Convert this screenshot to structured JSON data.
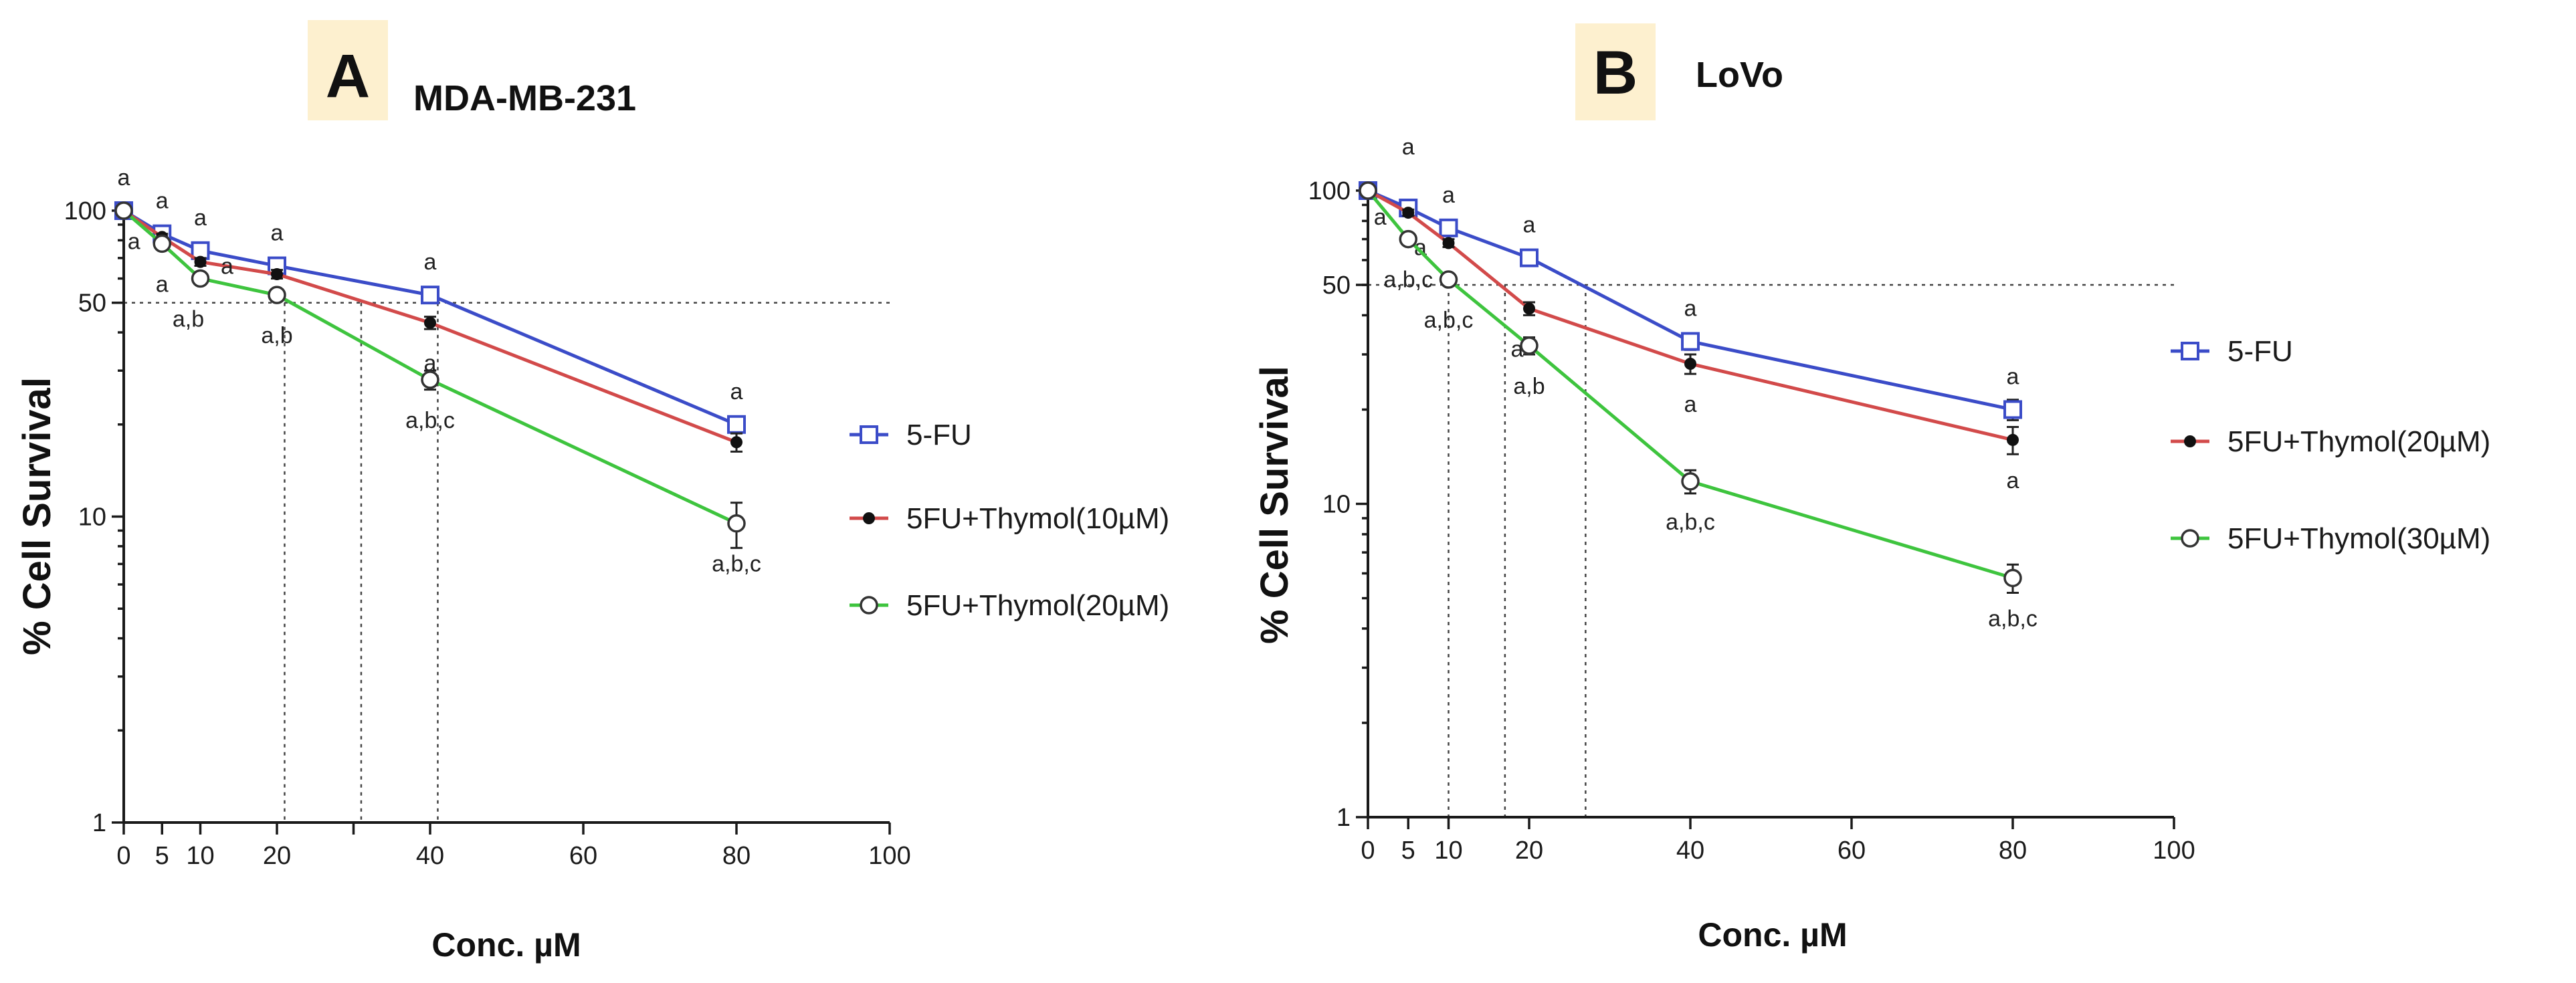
{
  "chart_data": [
    {
      "type": "line",
      "panel_letter": "A",
      "title": "MDA-MB-231",
      "xlabel": "Conc.  µM",
      "ylabel": "% Cell Survival",
      "yscale": "log",
      "xlim": [
        0,
        100
      ],
      "ylim": [
        1,
        100
      ],
      "xticks": [
        0,
        5,
        10,
        20,
        30,
        40,
        60,
        80,
        100
      ],
      "xtick_labels": [
        "0",
        "5",
        "10",
        "20",
        "",
        "40",
        "60",
        "80",
        "100"
      ],
      "yticks": [
        1,
        10,
        50,
        100
      ],
      "ytick_labels": [
        "1",
        "10",
        "50",
        "100"
      ],
      "x": [
        0,
        5,
        10,
        20,
        40,
        80
      ],
      "series": [
        {
          "name": "5-FU",
          "color": "#3b4cc8",
          "marker": "square",
          "values": [
            100,
            84,
            74,
            66,
            53,
            20
          ],
          "errors": [
            2,
            2,
            2,
            2,
            2,
            1
          ],
          "annotations": [
            {
              "text": "a",
              "pos": "above"
            },
            {
              "text": "a",
              "pos": "above"
            },
            {
              "text": "a",
              "pos": "above"
            },
            {
              "text": "a",
              "pos": "above"
            },
            {
              "text": "a",
              "pos": "above"
            },
            {
              "text": "a",
              "pos": "above"
            }
          ]
        },
        {
          "name": "5FU+Thymol(10µM)",
          "color": "#d24a4a",
          "marker": "dot",
          "values": [
            100,
            82,
            68,
            62,
            43,
            17.5
          ],
          "errors": [
            2,
            2,
            2,
            2,
            2,
            1.2
          ],
          "annotations": [
            {
              "text": "",
              "pos": ""
            },
            {
              "text": "a",
              "pos": "left"
            },
            {
              "text": "a",
              "pos": "right"
            },
            {
              "text": "",
              "pos": ""
            },
            {
              "text": "a",
              "pos": "below"
            },
            {
              "text": "",
              "pos": ""
            }
          ]
        },
        {
          "name": "5FU+Thymol(20µM)",
          "color": "#3ec43e",
          "marker": "circle",
          "values": [
            100,
            78,
            60,
            53,
            28,
            9.5
          ],
          "errors": [
            2,
            2,
            2,
            2,
            2,
            1.6
          ],
          "annotations": [
            {
              "text": "",
              "pos": ""
            },
            {
              "text": "a",
              "pos": "below"
            },
            {
              "text": "a,b",
              "pos": "belowleft"
            },
            {
              "text": "a,b",
              "pos": "below"
            },
            {
              "text": "a,b,c",
              "pos": "below"
            },
            {
              "text": "a,b,c",
              "pos": "below"
            }
          ]
        }
      ],
      "reference_lines": {
        "y50": 50,
        "ic50_x": [
          21,
          31,
          41
        ]
      },
      "legend": "right"
    },
    {
      "type": "line",
      "panel_letter": "B",
      "title": "LoVo",
      "xlabel": "Conc.  µM",
      "ylabel": "% Cell Survival",
      "yscale": "log",
      "xlim": [
        0,
        100
      ],
      "ylim": [
        1,
        100
      ],
      "xticks": [
        0,
        5,
        10,
        20,
        40,
        60,
        80,
        100
      ],
      "xtick_labels": [
        "0",
        "5",
        "10",
        "20",
        "40",
        "60",
        "80",
        "100"
      ],
      "yticks": [
        1,
        10,
        50,
        100
      ],
      "ytick_labels": [
        "1",
        "10",
        "50",
        "100"
      ],
      "x": [
        0,
        5,
        10,
        20,
        40,
        80
      ],
      "series": [
        {
          "name": "5-FU",
          "color": "#3b4cc8",
          "marker": "square",
          "values": [
            100,
            88,
            76,
            61,
            33,
            20
          ],
          "errors": [
            2,
            2,
            2,
            2,
            2,
            1.5
          ],
          "annotations": [
            {
              "text": "",
              "pos": ""
            },
            {
              "text": "a",
              "pos": "above2"
            },
            {
              "text": "a",
              "pos": "above"
            },
            {
              "text": "a",
              "pos": "above"
            },
            {
              "text": "a",
              "pos": "above"
            },
            {
              "text": "a",
              "pos": "above"
            }
          ]
        },
        {
          "name": "5FU+Thymol(20µM)",
          "color": "#d24a4a",
          "marker": "dot",
          "values": [
            100,
            85,
            68,
            42,
            28,
            16
          ],
          "errors": [
            2,
            2,
            2,
            2,
            2,
            1.6
          ],
          "annotations": [
            {
              "text": "",
              "pos": ""
            },
            {
              "text": "a",
              "pos": "left"
            },
            {
              "text": "a",
              "pos": "left"
            },
            {
              "text": "a",
              "pos": "belowleft"
            },
            {
              "text": "a",
              "pos": "below"
            },
            {
              "text": "a",
              "pos": "below"
            }
          ]
        },
        {
          "name": "5FU+Thymol(30µM)",
          "color": "#3ec43e",
          "marker": "circle",
          "values": [
            100,
            70,
            52,
            32,
            11.8,
            5.8
          ],
          "errors": [
            2,
            2,
            2,
            2,
            1,
            0.6
          ],
          "annotations": [
            {
              "text": "",
              "pos": ""
            },
            {
              "text": "a,b,c",
              "pos": "below"
            },
            {
              "text": "a,b,c",
              "pos": "below"
            },
            {
              "text": "a,b",
              "pos": "below"
            },
            {
              "text": "a,b,c",
              "pos": "below"
            },
            {
              "text": "a,b,c",
              "pos": "below"
            }
          ]
        }
      ],
      "reference_lines": {
        "y50": 50,
        "ic50_x": [
          10,
          17,
          27
        ]
      },
      "legend": "right"
    }
  ]
}
